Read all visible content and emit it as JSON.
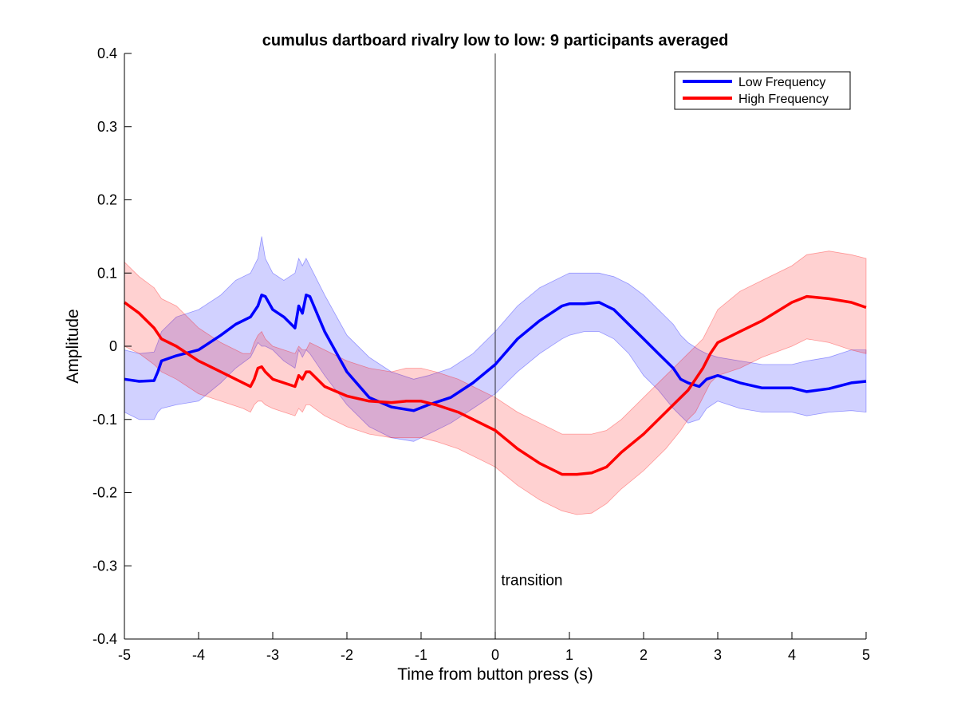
{
  "chart_data": {
    "type": "line",
    "title": "cumulus dartboard rivalry low to low: 9 participants averaged",
    "xlabel": "Time from button press (s)",
    "ylabel": "Amplitude",
    "xlim": [
      -5,
      5
    ],
    "ylim": [
      -0.4,
      0.4
    ],
    "xticks": [
      "-5",
      "-4",
      "-3",
      "-2",
      "-1",
      "0",
      "1",
      "2",
      "3",
      "4",
      "5"
    ],
    "yticks": [
      "0.4",
      "0.3",
      "0.2",
      "0.1",
      "0",
      "-0.1",
      "-0.2",
      "-0.3",
      "-0.4"
    ],
    "grid": false,
    "legend_position": "top-right",
    "annotation": {
      "text": "transition",
      "x": 0.08,
      "y": -0.32
    },
    "vertical_line_x": 0,
    "series": [
      {
        "name": "Low Frequency",
        "color": "#0000ff",
        "band_color": "#0000ff",
        "x": [
          -5,
          -4.8,
          -4.6,
          -4.55,
          -4.5,
          -4.3,
          -4.0,
          -3.7,
          -3.5,
          -3.3,
          -3.2,
          -3.15,
          -3.1,
          -3.0,
          -2.85,
          -2.7,
          -2.65,
          -2.6,
          -2.55,
          -2.5,
          -2.3,
          -2.0,
          -1.7,
          -1.4,
          -1.1,
          -0.9,
          -0.6,
          -0.3,
          0,
          0.3,
          0.6,
          0.9,
          1.0,
          1.2,
          1.4,
          1.6,
          1.8,
          2.0,
          2.2,
          2.4,
          2.5,
          2.6,
          2.75,
          2.85,
          3.0,
          3.3,
          3.6,
          4.0,
          4.2,
          4.5,
          4.8,
          5.0
        ],
        "y": [
          -0.045,
          -0.048,
          -0.047,
          -0.035,
          -0.02,
          -0.013,
          -0.005,
          0.015,
          0.03,
          0.04,
          0.055,
          0.07,
          0.068,
          0.05,
          0.04,
          0.025,
          0.055,
          0.045,
          0.07,
          0.068,
          0.02,
          -0.035,
          -0.07,
          -0.083,
          -0.088,
          -0.08,
          -0.07,
          -0.05,
          -0.025,
          0.01,
          0.035,
          0.055,
          0.058,
          0.058,
          0.06,
          0.05,
          0.03,
          0.01,
          -0.01,
          -0.03,
          -0.045,
          -0.05,
          -0.055,
          -0.045,
          -0.04,
          -0.05,
          -0.057,
          -0.057,
          -0.062,
          -0.058,
          -0.05,
          -0.048
        ],
        "upper": [
          -0.005,
          -0.01,
          -0.008,
          0.005,
          0.02,
          0.04,
          0.05,
          0.07,
          0.09,
          0.1,
          0.12,
          0.15,
          0.12,
          0.1,
          0.09,
          0.1,
          0.12,
          0.11,
          0.12,
          0.11,
          0.07,
          0.015,
          -0.015,
          -0.035,
          -0.045,
          -0.04,
          -0.03,
          -0.01,
          0.02,
          0.055,
          0.08,
          0.095,
          0.1,
          0.1,
          0.1,
          0.095,
          0.085,
          0.07,
          0.05,
          0.03,
          0.015,
          0.005,
          -0.005,
          -0.01,
          -0.015,
          -0.02,
          -0.025,
          -0.025,
          -0.02,
          -0.015,
          -0.005,
          -0.005
        ],
        "lower": [
          -0.09,
          -0.1,
          -0.1,
          -0.09,
          -0.085,
          -0.08,
          -0.075,
          -0.05,
          -0.03,
          -0.015,
          0.005,
          0.0,
          0.0,
          -0.005,
          -0.02,
          -0.03,
          -0.005,
          -0.015,
          -0.005,
          -0.01,
          -0.04,
          -0.08,
          -0.11,
          -0.125,
          -0.13,
          -0.12,
          -0.105,
          -0.085,
          -0.065,
          -0.035,
          -0.01,
          0.01,
          0.015,
          0.02,
          0.02,
          0.01,
          -0.01,
          -0.04,
          -0.06,
          -0.085,
          -0.095,
          -0.105,
          -0.1,
          -0.085,
          -0.075,
          -0.085,
          -0.09,
          -0.09,
          -0.095,
          -0.09,
          -0.088,
          -0.09
        ]
      },
      {
        "name": "High Frequency",
        "color": "#ff0000",
        "band_color": "#ff0000",
        "x": [
          -5,
          -4.8,
          -4.6,
          -4.5,
          -4.3,
          -4.0,
          -3.7,
          -3.4,
          -3.3,
          -3.25,
          -3.2,
          -3.15,
          -3.1,
          -3.0,
          -2.85,
          -2.7,
          -2.65,
          -2.6,
          -2.55,
          -2.5,
          -2.3,
          -2.0,
          -1.7,
          -1.4,
          -1.2,
          -1.0,
          -0.8,
          -0.5,
          -0.2,
          0,
          0.3,
          0.6,
          0.9,
          1.1,
          1.3,
          1.5,
          1.7,
          2.0,
          2.3,
          2.5,
          2.6,
          2.7,
          2.8,
          2.9,
          3.0,
          3.3,
          3.6,
          4.0,
          4.2,
          4.5,
          4.8,
          5.0
        ],
        "y": [
          0.06,
          0.045,
          0.025,
          0.01,
          0.0,
          -0.02,
          -0.035,
          -0.05,
          -0.055,
          -0.045,
          -0.03,
          -0.028,
          -0.035,
          -0.045,
          -0.05,
          -0.055,
          -0.04,
          -0.045,
          -0.035,
          -0.035,
          -0.055,
          -0.068,
          -0.075,
          -0.077,
          -0.075,
          -0.075,
          -0.08,
          -0.09,
          -0.105,
          -0.115,
          -0.14,
          -0.16,
          -0.175,
          -0.175,
          -0.173,
          -0.165,
          -0.145,
          -0.12,
          -0.09,
          -0.07,
          -0.06,
          -0.045,
          -0.03,
          -0.01,
          0.005,
          0.02,
          0.035,
          0.06,
          0.068,
          0.065,
          0.06,
          0.053
        ],
        "upper": [
          0.115,
          0.095,
          0.08,
          0.065,
          0.055,
          0.025,
          0.005,
          -0.01,
          -0.01,
          0.005,
          0.015,
          0.02,
          0.01,
          0.0,
          -0.005,
          -0.01,
          0.0,
          -0.005,
          -0.005,
          0.005,
          -0.005,
          -0.02,
          -0.03,
          -0.035,
          -0.03,
          -0.03,
          -0.035,
          -0.045,
          -0.06,
          -0.07,
          -0.09,
          -0.105,
          -0.12,
          -0.12,
          -0.12,
          -0.115,
          -0.1,
          -0.07,
          -0.04,
          -0.02,
          -0.01,
          0.0,
          0.01,
          0.03,
          0.05,
          0.075,
          0.09,
          0.11,
          0.125,
          0.13,
          0.125,
          0.12
        ],
        "lower": [
          0.0,
          -0.01,
          -0.025,
          -0.035,
          -0.045,
          -0.065,
          -0.075,
          -0.085,
          -0.09,
          -0.08,
          -0.075,
          -0.075,
          -0.08,
          -0.085,
          -0.09,
          -0.095,
          -0.085,
          -0.09,
          -0.08,
          -0.08,
          -0.095,
          -0.11,
          -0.12,
          -0.125,
          -0.125,
          -0.125,
          -0.13,
          -0.14,
          -0.155,
          -0.165,
          -0.19,
          -0.21,
          -0.225,
          -0.23,
          -0.228,
          -0.215,
          -0.195,
          -0.17,
          -0.14,
          -0.115,
          -0.1,
          -0.09,
          -0.07,
          -0.05,
          -0.04,
          -0.03,
          -0.015,
          0.0,
          0.01,
          0.005,
          -0.005,
          -0.01
        ]
      }
    ]
  }
}
